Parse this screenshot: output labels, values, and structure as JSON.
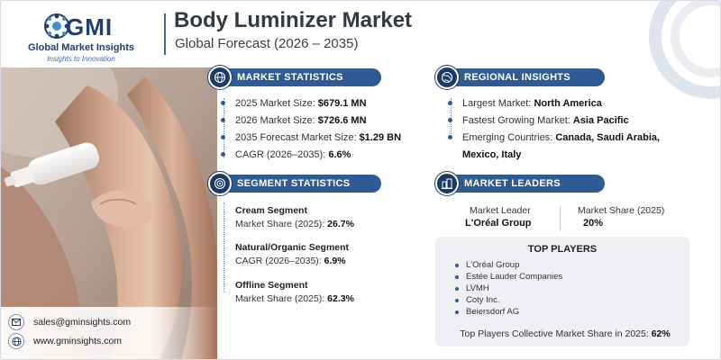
{
  "header": {
    "logo_text": "GMI",
    "logo_name": "Global Market Insights",
    "logo_tagline": "Insights to Innovation",
    "title": "Body Luminizer Market",
    "subtitle": "Global Forecast (2026 – 2035)"
  },
  "market_statistics": {
    "heading": "MARKET STATISTICS",
    "items": [
      {
        "label": "2025 Market Size: ",
        "value": "$679.1 MN"
      },
      {
        "label": "2026 Market Size: ",
        "value": "$726.6 MN"
      },
      {
        "label": "2035 Forecast Market Size: ",
        "value": "$1.29 BN"
      },
      {
        "label": "CAGR (2026–2035): ",
        "value": "6.6%"
      }
    ]
  },
  "regional_insights": {
    "heading": "REGIONAL INSIGHTS",
    "items": [
      {
        "label": "Largest Market: ",
        "value": "North America"
      },
      {
        "label": "Fastest Growing Market: ",
        "value": "Asia Pacific"
      },
      {
        "label": "Emerging Countries: ",
        "value": "Canada, Saudi Arabia,"
      }
    ],
    "emerging_cont": "Mexico, Italy"
  },
  "segment_statistics": {
    "heading": "SEGMENT STATISTICS",
    "items": [
      {
        "name": "Cream Segment",
        "label": "Market Share (2025): ",
        "value": "26.7%"
      },
      {
        "name": "Natural/Organic Segment",
        "label": "CAGR (2026–2035): ",
        "value": "6.9%"
      },
      {
        "name": "Offline Segment",
        "label": "Market Share (2025): ",
        "value": "62.3%"
      }
    ]
  },
  "market_leaders": {
    "heading": "MARKET LEADERS",
    "leader_label": "Market Leader",
    "leader_value": "L'Oréal Group",
    "share_label": "Market Share (2025)",
    "share_value": "20%"
  },
  "top_players": {
    "heading": "TOP PLAYERS",
    "items": [
      "L'Oréal Group",
      "Estée Lauder Companies",
      "LVMH",
      "Coty Inc.",
      "Beiersdorf AG"
    ],
    "footer_label": "Top Players Collective Market Share in 2025: ",
    "footer_value": "62%"
  },
  "contact": {
    "email": "sales@gminsights.com",
    "website": "www.gminsights.com"
  },
  "icons": {
    "market_statistics": "globe-chart-icon",
    "regional_insights": "globe-icon",
    "segment_statistics": "target-icon",
    "market_leaders": "building-icon",
    "email": "envelope-icon",
    "website": "globe-icon"
  },
  "colors": {
    "accent": "#2f5b94",
    "accent_dark": "#1c3a66",
    "title": "#333a45",
    "panel": "#eef0f3"
  }
}
